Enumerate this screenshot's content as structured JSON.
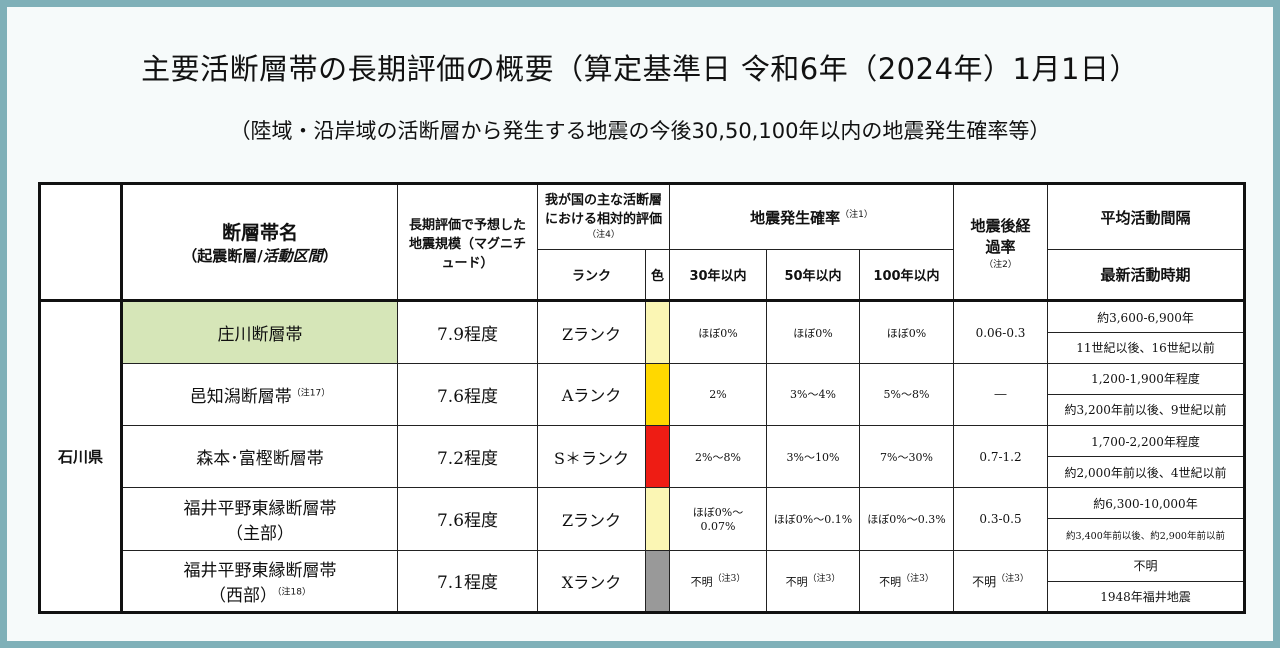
{
  "title": "主要活断層帯の長期評価の概要（算定基準日 令和6年（2024年）1月1日）",
  "subtitle": "（陸域・沿岸域の活断層から発生する地震の今後30,50,100年以内の地震発生確率等）",
  "header": {
    "fault_name": "断層帯名",
    "fault_name_sub_a": "（起震断層/",
    "fault_name_sub_b": "活動区間",
    "fault_name_sub_c": "）",
    "magnitude": "長期評価で予想した地震規模（マグニチュード）",
    "relative_eval": "我が国の主な活断層における相対的評価",
    "relative_eval_note": "（注4）",
    "rank": "ランク",
    "color": "色",
    "probability": "地震発生確率",
    "probability_note": "（注1）",
    "p30": "30年以内",
    "p50": "50年以内",
    "p100": "100年以内",
    "elapsed_rate": "地震後経過率",
    "elapsed_note": "（注2）",
    "interval": "平均活動間隔",
    "latest": "最新活動時期"
  },
  "prefecture": "石川県",
  "rows": [
    {
      "name": "庄川断層帯",
      "name2": "",
      "note": "",
      "magnitude": "7.9程度",
      "rank": "Zランク",
      "color": "#fbf6b4",
      "p30": "ほぼ0%",
      "p50": "ほぼ0%",
      "p100": "ほぼ0%",
      "p_note": "",
      "rate": "0.06-0.3",
      "rate_note": "",
      "interval": "約3,600-6,900年",
      "latest": "11世紀以後、16世紀以前"
    },
    {
      "name": "邑知潟断層帯",
      "name2": "",
      "note": "（注17）",
      "magnitude": "7.6程度",
      "rank": "Aランク",
      "color": "#ffd800",
      "p30": "2%",
      "p50": "3%～4%",
      "p100": "5%～8%",
      "p_note": "",
      "rate": "―",
      "rate_note": "",
      "interval": "1,200-1,900年程度",
      "latest": "約3,200年前以後、9世紀以前"
    },
    {
      "name": "森本･富樫断層帯",
      "name2": "",
      "note": "",
      "magnitude": "7.2程度",
      "rank": "S＊ランク",
      "color": "#ee1c14",
      "p30": "2%～8%",
      "p50": "3%～10%",
      "p100": "7%～30%",
      "p_note": "",
      "rate": "0.7-1.2",
      "rate_note": "",
      "interval": "1,700-2,200年程度",
      "latest": "約2,000年前以後、4世紀以前"
    },
    {
      "name": "福井平野東縁断層帯",
      "name2": "（主部）",
      "note": "",
      "magnitude": "7.6程度",
      "rank": "Zランク",
      "color": "#fbf6b4",
      "p30": "ほぼ0%～0.07%",
      "p50": "ほぼ0%～0.1%",
      "p100": "ほぼ0%～0.3%",
      "p_note": "",
      "rate": "0.3-0.5",
      "rate_note": "",
      "interval": "約6,300-10,000年",
      "latest": "約3,400年前以後、約2,900年前以前"
    },
    {
      "name": "福井平野東縁断層帯",
      "name2": "（西部）",
      "note": "（注18）",
      "magnitude": "7.1程度",
      "rank": "Xランク",
      "color": "#999999",
      "p30": "不明",
      "p50": "不明",
      "p100": "不明",
      "p_note": "（注3）",
      "rate": "不明",
      "rate_note": "（注3）",
      "interval": "不明",
      "latest": "1948年福井地震"
    }
  ]
}
